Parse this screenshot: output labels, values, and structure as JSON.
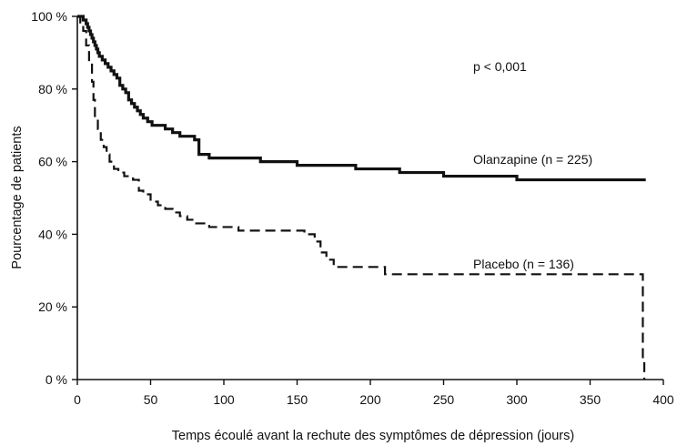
{
  "chart_data": {
    "type": "line",
    "title": "",
    "xlabel": "Temps écoulé avant la rechute des symptômes de dépression (jours)",
    "ylabel": "Pourcentage de patients",
    "xlim": [
      0,
      400
    ],
    "ylim": [
      0,
      100
    ],
    "x_ticks": [
      "0",
      "50",
      "100",
      "150",
      "200",
      "250",
      "300",
      "350",
      "400"
    ],
    "y_ticks": [
      "0 %",
      "20 %",
      "40 %",
      "60 %",
      "80 %",
      "100 %"
    ],
    "grid": false,
    "annotation": "p < 0,001",
    "series": [
      {
        "name": "Olanzapine (n = 225)",
        "style": "solid",
        "color": "#111111",
        "x": [
          0,
          3,
          4,
          6,
          7,
          8,
          9,
          10,
          11,
          12,
          13,
          14,
          15,
          17,
          19,
          21,
          23,
          25,
          27,
          29,
          31,
          33,
          35,
          37,
          39,
          41,
          43,
          45,
          48,
          51,
          55,
          60,
          65,
          70,
          75,
          80,
          83,
          85,
          90,
          100,
          110,
          125,
          140,
          150,
          160,
          175,
          190,
          200,
          210,
          220,
          230,
          250,
          270,
          290,
          300,
          330,
          350,
          380,
          388
        ],
        "y": [
          100,
          100,
          99,
          98,
          97,
          96,
          95,
          94,
          93,
          92,
          91,
          90,
          89,
          88,
          87,
          86,
          85,
          84,
          83,
          81,
          80,
          79,
          77,
          76,
          75,
          74,
          73,
          72,
          71,
          70,
          70,
          69,
          68,
          67,
          67,
          66,
          62,
          62,
          61,
          61,
          61,
          60,
          60,
          59,
          59,
          59,
          58,
          58,
          58,
          57,
          57,
          56,
          56,
          56,
          55,
          55,
          55,
          55,
          55
        ]
      },
      {
        "name": "Placebo (n = 136)",
        "style": "dashed",
        "color": "#111111",
        "x": [
          0,
          2,
          4,
          6,
          8,
          10,
          11,
          12,
          14,
          16,
          18,
          20,
          22,
          25,
          28,
          32,
          38,
          42,
          45,
          50,
          55,
          60,
          65,
          70,
          75,
          80,
          90,
          100,
          110,
          125,
          150,
          155,
          162,
          166,
          170,
          175,
          200,
          210,
          250,
          300,
          350,
          385,
          386,
          387
        ],
        "y": [
          100,
          98,
          96,
          92,
          87,
          82,
          77,
          72,
          69,
          66,
          64,
          62,
          60,
          58,
          57,
          56,
          55,
          52,
          51,
          49,
          48,
          47,
          46,
          45,
          44,
          43,
          42,
          42,
          41,
          41,
          41,
          40,
          38,
          35,
          33,
          31,
          31,
          29,
          29,
          29,
          29,
          29,
          5,
          0
        ]
      }
    ]
  }
}
